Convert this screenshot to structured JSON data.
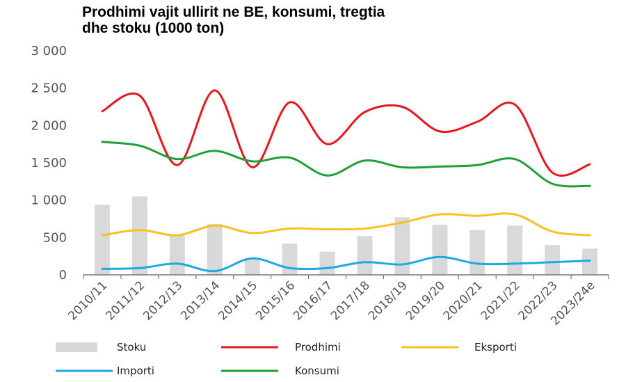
{
  "chart_data": {
    "type": "bar+line",
    "title_lines": [
      "Prodhimi vajit ullirit ne BE, konsumi, tregtia",
      "dhe stoku (1000 ton)"
    ],
    "categories": [
      "2010/11",
      "2011/12",
      "2012/13",
      "2013/14",
      "2014/15",
      "2015/16",
      "2016/17",
      "2017/18",
      "2018/19",
      "2019/20",
      "2020/21",
      "2021/22",
      "2022/23",
      "2023/24e"
    ],
    "ylim": [
      0,
      3000
    ],
    "yticks": [
      0,
      500,
      1000,
      1500,
      2000,
      2500,
      3000
    ],
    "ytick_labels": [
      "0",
      "500",
      "1 000",
      "1 500",
      "2 000",
      "2 500",
      "3 000"
    ],
    "grid": false,
    "legend_position": "bottom",
    "series": [
      {
        "name": "Stoku",
        "kind": "bar",
        "color": "#d9d9d9",
        "values": [
          940,
          1050,
          540,
          680,
          220,
          420,
          310,
          520,
          770,
          670,
          600,
          660,
          400,
          350
        ]
      },
      {
        "name": "Prodhimi",
        "kind": "line",
        "color": "#e8151b",
        "values": [
          2190,
          2400,
          1470,
          2470,
          1440,
          2310,
          1750,
          2180,
          2250,
          1920,
          2050,
          2280,
          1370,
          1480
        ]
      },
      {
        "name": "Eksporti",
        "kind": "line",
        "color": "#f7c21d",
        "values": [
          530,
          600,
          530,
          660,
          560,
          620,
          610,
          620,
          700,
          810,
          790,
          810,
          580,
          530
        ]
      },
      {
        "name": "Importi",
        "kind": "line",
        "color": "#1aa9e0",
        "values": [
          80,
          90,
          150,
          50,
          220,
          90,
          90,
          170,
          140,
          240,
          150,
          150,
          170,
          190
        ]
      },
      {
        "name": "Konsumi",
        "kind": "line",
        "color": "#1ea039",
        "values": [
          1780,
          1730,
          1550,
          1660,
          1520,
          1570,
          1330,
          1530,
          1440,
          1450,
          1470,
          1550,
          1220,
          1190
        ]
      }
    ]
  }
}
